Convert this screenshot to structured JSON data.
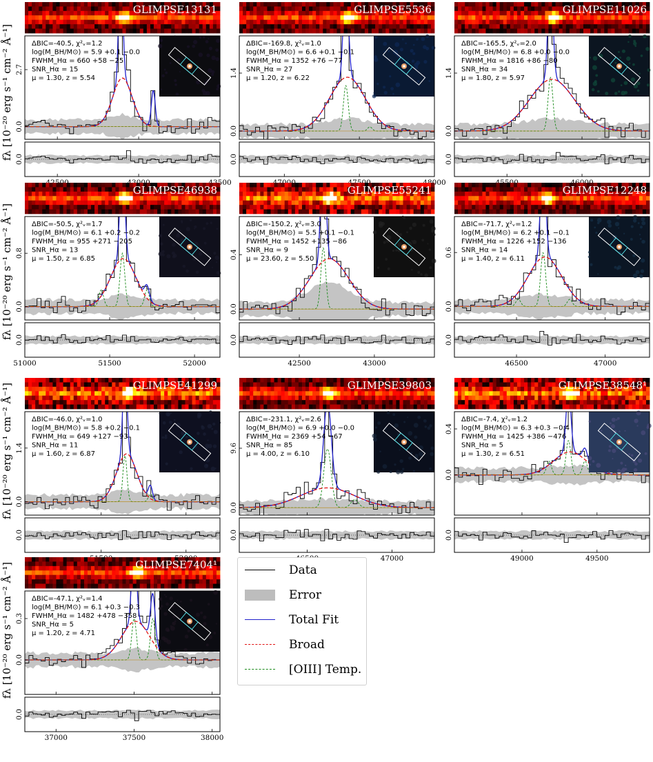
{
  "figure": {
    "ylabel": "f_λ [10^{-20} erg s^{-1} cm^{-2} Å^{-1}]",
    "ylabel_rows": [
      "fλ [10⁻²⁰ erg s⁻¹ cm⁻² Å⁻¹]",
      "fλ [10⁻²⁰ erg s⁻¹ cm⁻² Å⁻¹]",
      "fλ [10⁻²⁰ erg s⁻¹ cm⁻² Å⁻¹]",
      "fλ [10⁻²⁰ erg s⁻¹ cm⁻² Å⁻¹]"
    ]
  },
  "legend": [
    {
      "label": "Data",
      "style": "line",
      "color": "#000000"
    },
    {
      "label": "Error",
      "style": "box",
      "color": "#bdbdbd"
    },
    {
      "label": "Total Fit",
      "style": "line",
      "color": "#1f1fcc"
    },
    {
      "label": "Broad",
      "style": "dash",
      "color": "#e01010"
    },
    {
      "label": "[OIII] Temp.",
      "style": "dash",
      "color": "#1a8a1a"
    }
  ],
  "chart_data": [
    {
      "type": "line",
      "id": "GLIMPSE13131",
      "title": "GLIMPSE13131",
      "annot": [
        "ΔBIC=-40.5, χ²ᵥ=1.2",
        "log(M_BH/M⊙) = 5.9 +0.1 −0.0",
        "FWHM_Hα = 660 +58 −25",
        "SNR_Hα = 15",
        "μ = 1.30, z = 5.54"
      ],
      "xlim": [
        42300,
        43500
      ],
      "xticks": [
        42500,
        43000,
        43500
      ],
      "ylim": [
        -0.6,
        4.3
      ],
      "ytick": 2.7,
      "ytick0": 0.0,
      "center": 42900,
      "broad_amp": 2.3,
      "broad_sigma": 60,
      "narrow": [
        {
          "x": 42890,
          "amp": 6.0,
          "s": 12
        },
        {
          "x": 43090,
          "amp": 1.7,
          "s": 12
        }
      ],
      "template": []
    },
    {
      "type": "line",
      "id": "GLIMPSE5536",
      "title": "GLIMPSE5536",
      "annot": [
        "ΔBIC=-169.8, χ²ᵥ=1.0",
        "log(M_BH/M⊙) = 6.6 +0.1 −0.1",
        "FWHM_Hα = 1352 +76 −77",
        "SNR_Hα = 27",
        "μ = 1.20, z = 6.22"
      ],
      "xlim": [
        46700,
        48000
      ],
      "xticks": [
        47000,
        47500,
        48000
      ],
      "ylim": [
        -0.2,
        2.3
      ],
      "ytick": 1.4,
      "ytick0": 0.0,
      "center": 47420,
      "broad_amp": 1.3,
      "broad_sigma": 120,
      "narrow": [
        {
          "x": 47410,
          "amp": 2.6,
          "s": 16
        }
      ],
      "template": [
        {
          "x": 47410,
          "amp": 1.1,
          "s": 16
        },
        {
          "x": 47570,
          "amp": 0.1,
          "s": 15
        }
      ]
    },
    {
      "type": "line",
      "id": "GLIMPSE11026",
      "title": "GLIMPSE11026",
      "annot": [
        "ΔBIC=-165.5, χ²ᵥ=2.0",
        "log(M_BH/M⊙) = 6.8 +0.0 −0.0",
        "FWHM_Hα = 1816 +86 −80",
        "SNR_Hα = 34",
        "μ = 1.80, z = 5.97"
      ],
      "xlim": [
        45150,
        46450
      ],
      "xticks": [
        45500,
        46000
      ],
      "ylim": [
        -0.2,
        2.3
      ],
      "ytick": 1.4,
      "ytick0": 0.0,
      "center": 45800,
      "broad_amp": 1.25,
      "broad_sigma": 150,
      "narrow": [
        {
          "x": 45790,
          "amp": 2.6,
          "s": 16
        }
      ],
      "template": [
        {
          "x": 45790,
          "amp": 1.3,
          "s": 16
        }
      ]
    },
    {
      "type": "line",
      "id": "GLIMPSE46938",
      "title": "GLIMPSE46938",
      "annot": [
        "ΔBIC=-50.5, χ²ᵥ=1.7",
        "log(M_BH/M⊙) = 6.1 +0.2 −0.2",
        "FWHM_Hα = 955 +271 −205",
        "SNR_Hα = 13",
        "μ = 1.50, z = 6.85"
      ],
      "xlim": [
        51000,
        52150
      ],
      "xticks": [
        51000,
        51500,
        52000
      ],
      "ylim": [
        -0.2,
        1.35
      ],
      "ytick": 0.8,
      "ytick0": 0.0,
      "center": 51580,
      "broad_amp": 0.72,
      "broad_sigma": 75,
      "narrow": [
        {
          "x": 51575,
          "amp": 1.6,
          "s": 14
        },
        {
          "x": 51720,
          "amp": 0.2,
          "s": 14
        }
      ],
      "template": [
        {
          "x": 51575,
          "amp": 0.8,
          "s": 14
        },
        {
          "x": 51450,
          "amp": 0.25,
          "s": 14
        },
        {
          "x": 51720,
          "amp": 0.25,
          "s": 14
        }
      ]
    },
    {
      "type": "line",
      "id": "GLIMPSE55241",
      "title": "GLIMPSE55241",
      "annot": [
        "ΔBIC=-150.2, χ²ᵥ=3.0",
        "log(M_BH/M⊙) = 5.5 +0.1 −0.1",
        "FWHM_Hα = 1452 +135 −86",
        "SNR_Hα = 9",
        "μ = 23.60, z = 5.50"
      ],
      "xlim": [
        42100,
        43400
      ],
      "xticks": [
        42500,
        43000
      ],
      "ylim": [
        -0.08,
        0.68
      ],
      "ytick": 0.4,
      "ytick0": 0.0,
      "center": 42700,
      "broad_amp": 0.37,
      "broad_sigma": 130,
      "narrow": [
        {
          "x": 42660,
          "amp": 0.9,
          "s": 16
        }
      ],
      "template": [
        {
          "x": 42660,
          "amp": 0.45,
          "s": 16
        }
      ]
    },
    {
      "type": "line",
      "id": "GLIMPSE12248",
      "title": "GLIMPSE12248",
      "annot": [
        "ΔBIC=-71.7, χ²ᵥ=1.2",
        "log(M_BH/M⊙) = 6.2 +0.1 −0.1",
        "FWHM_Hα = 1226 +152 −136",
        "SNR_Hα = 14",
        "μ = 1.40, z = 6.11"
      ],
      "xlim": [
        46150,
        47250
      ],
      "xticks": [
        46500,
        47000
      ],
      "ylim": [
        -0.15,
        1.0
      ],
      "ytick": 0.6,
      "ytick0": 0.0,
      "center": 46660,
      "broad_amp": 0.55,
      "broad_sigma": 95,
      "narrow": [
        {
          "x": 46650,
          "amp": 1.2,
          "s": 14
        }
      ],
      "template": [
        {
          "x": 46650,
          "amp": 0.6,
          "s": 14
        },
        {
          "x": 46510,
          "amp": 0.08,
          "s": 14
        },
        {
          "x": 46800,
          "amp": 0.08,
          "s": 14
        }
      ]
    },
    {
      "type": "line",
      "id": "GLIMPSE41299",
      "title": "GLIMPSE41299",
      "annot": [
        "ΔBIC=-46.0, χ²ᵥ=1.0",
        "log(M_BH/M⊙) = 5.8 +0.2 −0.1",
        "FWHM_Hα = 649 +127 −93",
        "SNR_Hα = 11",
        "μ = 1.60, z = 6.87"
      ],
      "xlim": [
        51050,
        52200
      ],
      "xticks": [
        51500,
        52000
      ],
      "ylim": [
        -0.35,
        2.35
      ],
      "ytick": 1.4,
      "ytick0": 0.0,
      "center": 51650,
      "broad_amp": 1.25,
      "broad_sigma": 60,
      "narrow": [
        {
          "x": 51640,
          "amp": 2.5,
          "s": 12
        },
        {
          "x": 51790,
          "amp": 0.35,
          "s": 12
        }
      ],
      "template": [
        {
          "x": 51640,
          "amp": 1.2,
          "s": 12
        },
        {
          "x": 51790,
          "amp": 0.2,
          "s": 12
        }
      ]
    },
    {
      "type": "line",
      "id": "GLIMPSE39803",
      "title": "GLIMPSE39803",
      "annot": [
        "ΔBIC=-231.1, χ²ᵥ=2.6",
        "log(M_BH/M⊙) = 6.9 +0.0 −0.0",
        "FWHM_Hα = 2369 +54 −67",
        "SNR_Hα = 85",
        "μ = 4.00, z = 6.10"
      ],
      "xlim": [
        46100,
        47250
      ],
      "xticks": [
        46500,
        47000
      ],
      "ylim": [
        -1.2,
        15.5
      ],
      "ytick": 9.6,
      "ytick0": 0.0,
      "center": 46620,
      "broad_amp": 3.2,
      "broad_sigma": 160,
      "narrow": [
        {
          "x": 46620,
          "amp": 14,
          "s": 22
        }
      ],
      "template": [
        {
          "x": 46620,
          "amp": 9.5,
          "s": 22
        },
        {
          "x": 46780,
          "amp": 1.3,
          "s": 22
        }
      ]
    },
    {
      "type": "line",
      "id": "GLIMPSE38548",
      "title": "GLIMPSE38548¹",
      "annot": [
        "ΔBIC=-7.4, χ²ᵥ=1.2",
        "log(M_BH/M⊙) = 6.3 +0.3 −0.4",
        "FWHM_Hα = 1425 +386 −476",
        "SNR_Hα = 5",
        "μ = 1.30, z = 6.51"
      ],
      "xlim": [
        48550,
        49850
      ],
      "xticks": [
        49000,
        49500
      ],
      "ylim": [
        -0.35,
        0.55
      ],
      "ytick": 0.4,
      "ytick0": 0.0,
      "center": 49320,
      "broad_amp": 0.2,
      "broad_sigma": 110,
      "narrow": [
        {
          "x": 49310,
          "amp": 0.55,
          "s": 16
        },
        {
          "x": 49420,
          "amp": 0.1,
          "s": 16
        }
      ],
      "template": [
        {
          "x": 49310,
          "amp": 0.3,
          "s": 16
        },
        {
          "x": 49180,
          "amp": 0.12,
          "s": 16
        },
        {
          "x": 49420,
          "amp": 0.12,
          "s": 16
        }
      ]
    },
    {
      "type": "line",
      "id": "GLIMPSE7404",
      "title": "GLIMPSE7404¹",
      "annot": [
        "ΔBIC=-47.1, χ²ᵥ=1.4",
        "log(M_BH/M⊙) = 6.1 +0.3 −0.3",
        "FWHM_Hα = 1482 +478 −358",
        "SNR_Hα = 5",
        "μ = 1.20, z = 4.71"
      ],
      "xlim": [
        36800,
        38050
      ],
      "xticks": [
        37000,
        37500,
        38000
      ],
      "ylim": [
        -0.25,
        0.5
      ],
      "ytick": 0.3,
      "ytick0": 0.0,
      "center": 37510,
      "broad_amp": 0.28,
      "broad_sigma": 90,
      "narrow": [
        {
          "x": 37500,
          "amp": 0.6,
          "s": 15
        },
        {
          "x": 37620,
          "amp": 0.35,
          "s": 15
        }
      ],
      "template": [
        {
          "x": 37500,
          "amp": 0.3,
          "s": 15
        },
        {
          "x": 37620,
          "amp": 0.3,
          "s": 15
        }
      ]
    }
  ]
}
